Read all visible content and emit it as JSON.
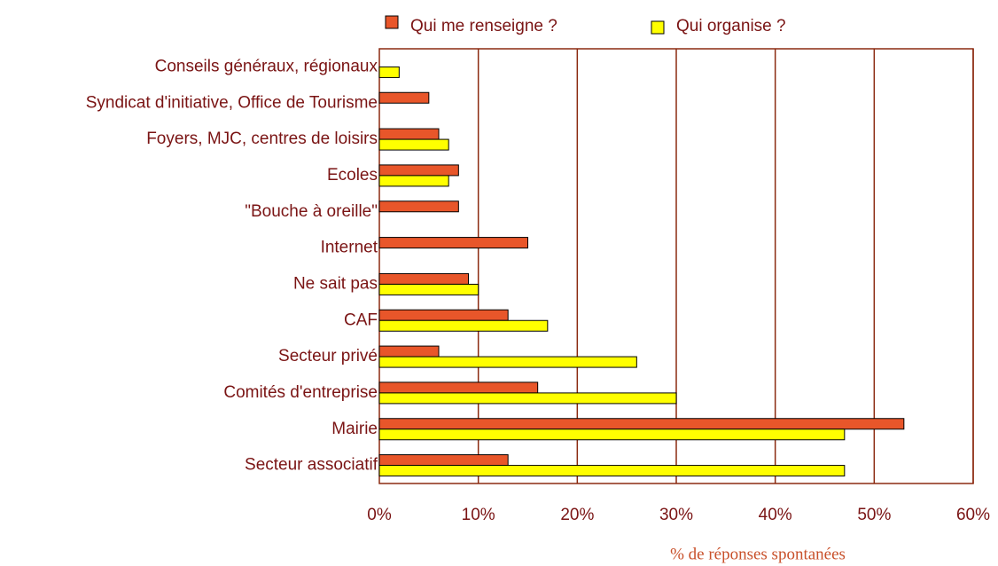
{
  "chart_data": {
    "type": "bar",
    "orientation": "horizontal",
    "x_label": "% de réponses spontanées",
    "categories": [
      "Conseils généraux, régionaux",
      "Syndicat d'initiative, Office de Tourisme",
      "Foyers, MJC, centres de loisirs",
      "Ecoles",
      "\"Bouche à oreille\"",
      "Internet",
      "Ne sait pas",
      "CAF",
      "Secteur privé",
      "Comités d'entreprise",
      "Mairie",
      "Secteur associatif"
    ],
    "series": [
      {
        "name": "Qui me renseigne ?",
        "color": "#e8562a",
        "values": [
          null,
          5,
          6,
          8,
          8,
          15,
          9,
          13,
          6,
          16,
          53,
          13
        ]
      },
      {
        "name": "Qui organise ?",
        "color": "#ffff00",
        "values": [
          2,
          null,
          7,
          7,
          null,
          null,
          10,
          17,
          26,
          30,
          47,
          47
        ]
      }
    ],
    "xlim": [
      0,
      60
    ],
    "xticks": [
      {
        "value": 0,
        "label": "0%"
      },
      {
        "value": 10,
        "label": "10%"
      },
      {
        "value": 20,
        "label": "20%"
      },
      {
        "value": 30,
        "label": "30%"
      },
      {
        "value": 40,
        "label": "40%"
      },
      {
        "value": 50,
        "label": "50%"
      },
      {
        "value": 60,
        "label": "60%"
      }
    ],
    "grid": true,
    "legend": "top"
  }
}
